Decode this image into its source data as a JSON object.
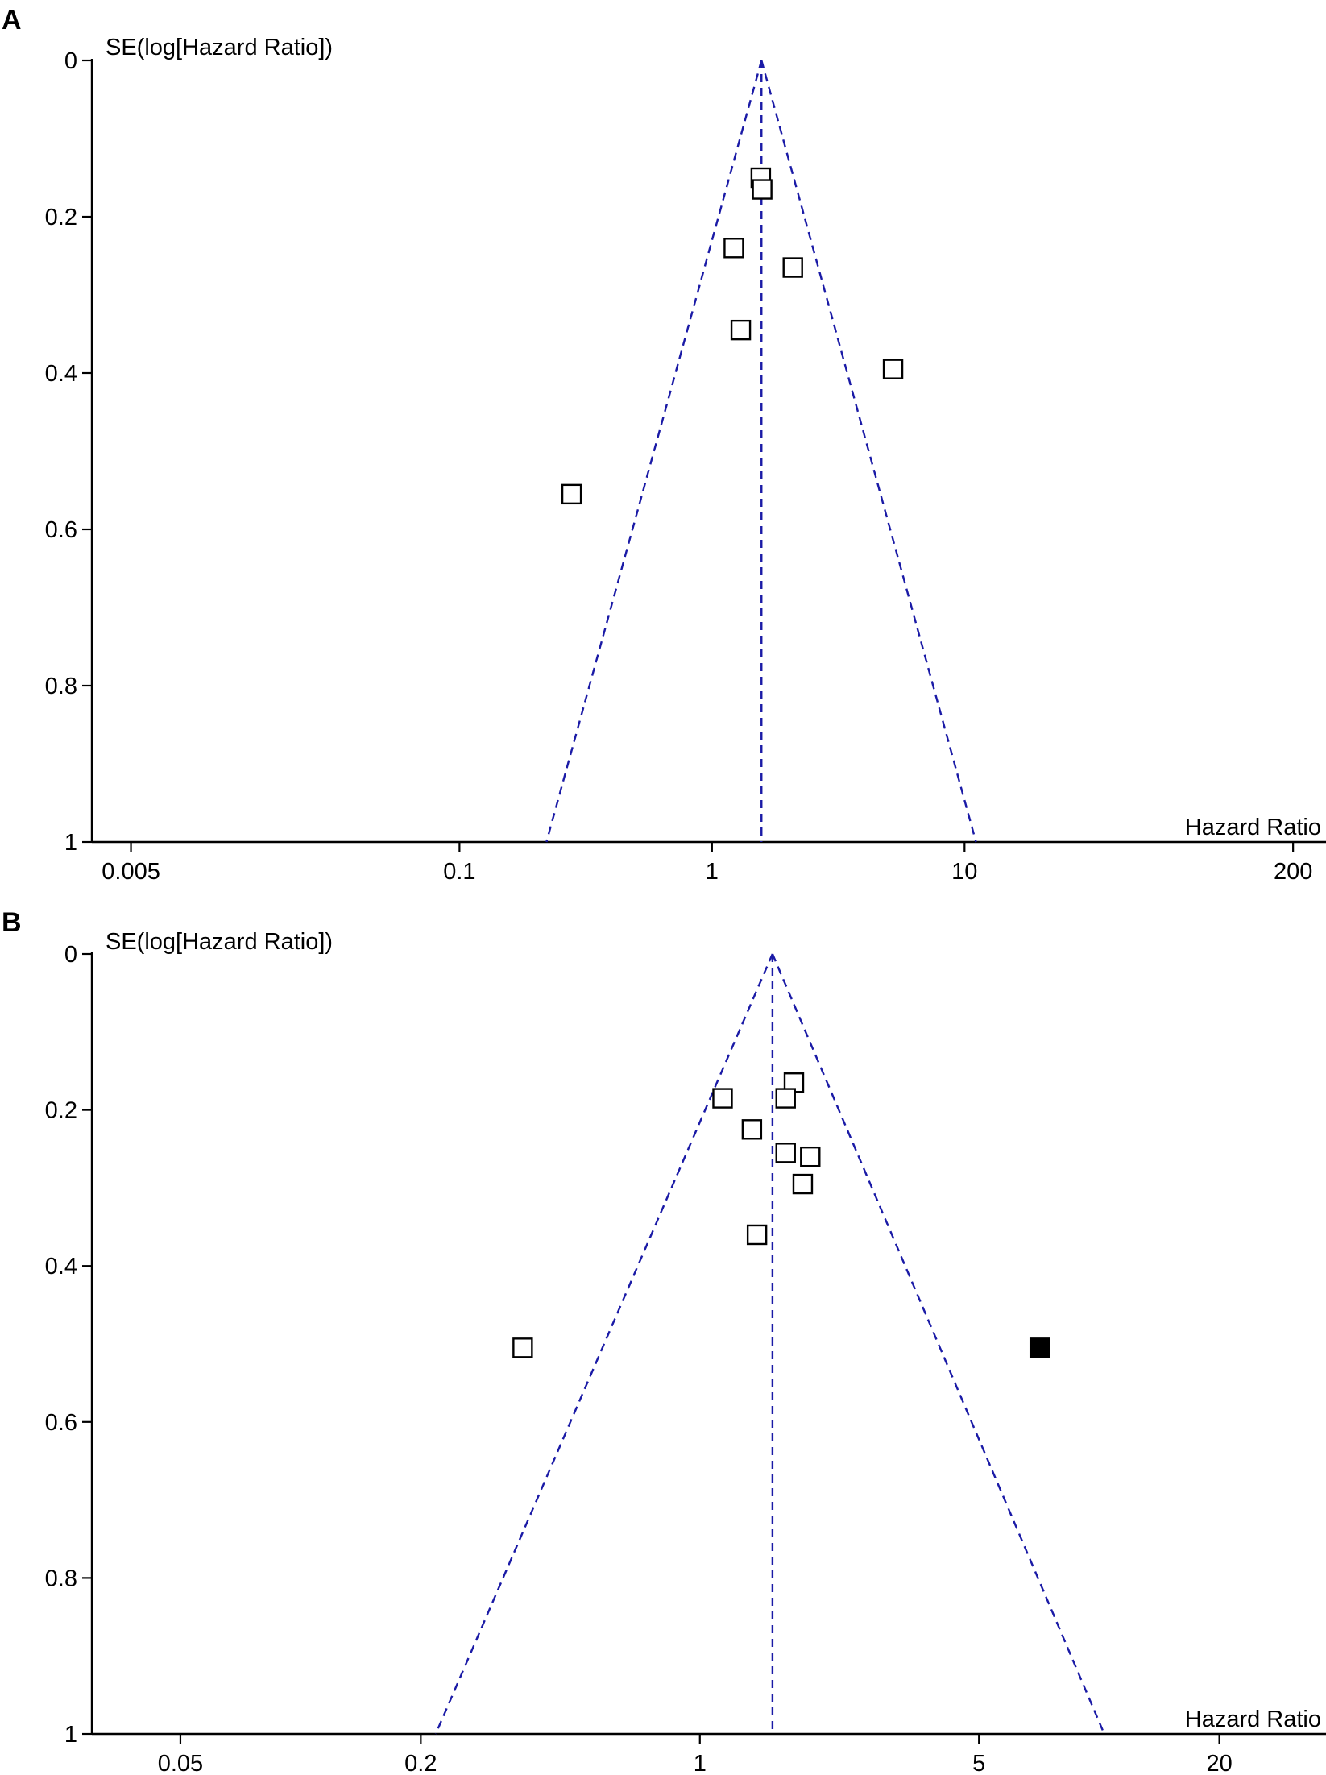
{
  "chart_data": [
    {
      "panel": "A",
      "type": "scatter",
      "ylabel": "SE(log[Hazard Ratio])",
      "xlabel": "Hazard Ratio",
      "x_scale": "log",
      "xlim": [
        0.0035,
        270
      ],
      "ylim": [
        0,
        1
      ],
      "y_reversed": true,
      "x_ticks": [
        0.005,
        0.1,
        1,
        10,
        200
      ],
      "x_tick_labels": [
        "0.005",
        "0.1",
        "1",
        "10",
        "200"
      ],
      "y_ticks": [
        0,
        0.2,
        0.4,
        0.6,
        0.8,
        1
      ],
      "y_tick_labels": [
        "0",
        "0.2",
        "0.4",
        "0.6",
        "0.8",
        "1"
      ],
      "pooled_hr": 1.57,
      "funnel": {
        "apex": [
          1.57,
          0
        ],
        "left_at_se1": [
          0.221,
          1
        ],
        "right_at_se1": [
          11.1,
          1
        ]
      },
      "points": [
        {
          "hr": 1.56,
          "se": 0.15,
          "filled": false
        },
        {
          "hr": 1.58,
          "se": 0.165,
          "filled": false
        },
        {
          "hr": 1.22,
          "se": 0.24,
          "filled": false
        },
        {
          "hr": 2.09,
          "se": 0.265,
          "filled": false
        },
        {
          "hr": 1.3,
          "se": 0.345,
          "filled": false
        },
        {
          "hr": 5.21,
          "se": 0.395,
          "filled": false
        },
        {
          "hr": 0.278,
          "se": 0.555,
          "filled": false
        }
      ]
    },
    {
      "panel": "B",
      "type": "scatter",
      "ylabel": "SE(log[Hazard Ratio])",
      "xlabel": "Hazard Ratio",
      "x_scale": "log",
      "xlim": [
        0.03,
        37
      ],
      "ylim": [
        0,
        1
      ],
      "y_reversed": true,
      "x_ticks": [
        0.05,
        0.2,
        1,
        5,
        20
      ],
      "x_tick_labels": [
        "0.05",
        "0.2",
        "1",
        "5",
        "20"
      ],
      "y_ticks": [
        0,
        0.2,
        0.4,
        0.6,
        0.8,
        1
      ],
      "y_tick_labels": [
        "0",
        "0.2",
        "0.4",
        "0.6",
        "0.8",
        "1"
      ],
      "pooled_hr": 1.52,
      "funnel": {
        "apex": [
          1.52,
          0
        ],
        "left_at_se1": [
          0.218,
          1
        ],
        "right_at_se1": [
          10.3,
          1
        ]
      },
      "points": [
        {
          "hr": 1.72,
          "se": 0.165,
          "filled": false
        },
        {
          "hr": 1.14,
          "se": 0.185,
          "filled": false
        },
        {
          "hr": 1.64,
          "se": 0.185,
          "filled": false
        },
        {
          "hr": 1.35,
          "se": 0.225,
          "filled": false
        },
        {
          "hr": 1.64,
          "se": 0.255,
          "filled": false
        },
        {
          "hr": 1.89,
          "se": 0.26,
          "filled": false
        },
        {
          "hr": 1.81,
          "se": 0.295,
          "filled": false
        },
        {
          "hr": 1.39,
          "se": 0.36,
          "filled": false
        },
        {
          "hr": 0.36,
          "se": 0.505,
          "filled": false
        },
        {
          "hr": 7.1,
          "se": 0.505,
          "filled": true
        }
      ]
    }
  ]
}
